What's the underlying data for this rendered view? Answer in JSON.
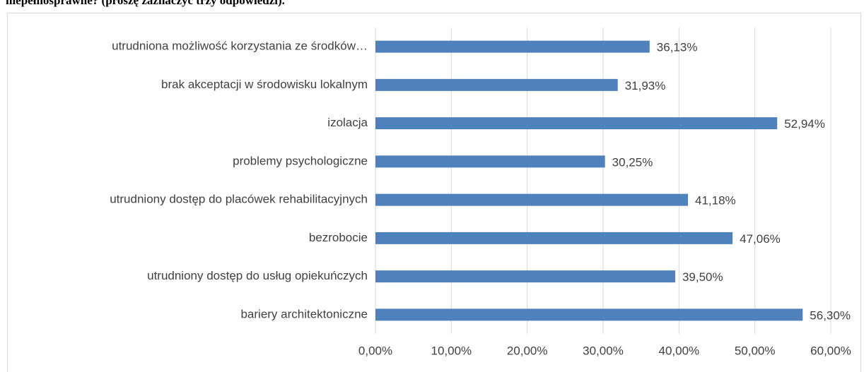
{
  "chart_data": {
    "type": "bar",
    "orientation": "horizontal",
    "title": "niepełnosprawne? (proszę zaznaczyć trzy odpowiedzi).",
    "categories": [
      "utrudniona możliwość korzystania ze środków…",
      "brak akceptacji w środowisku lokalnym",
      "izolacja",
      "problemy psychologiczne",
      "utrudniony dostęp do placówek rehabilitacyjnych",
      "bezrobocie",
      "utrudniony dostęp do usług opiekuńczych",
      "bariery architektoniczne"
    ],
    "values": [
      36.13,
      31.93,
      52.94,
      30.25,
      41.18,
      47.06,
      39.5,
      56.3
    ],
    "value_labels": [
      "36,13%",
      "31,93%",
      "52,94%",
      "30,25%",
      "41,18%",
      "47,06%",
      "39,50%",
      "56,30%"
    ],
    "color": "#4f81bd",
    "xlim": [
      0,
      60
    ],
    "xticks": [
      {
        "value": 0,
        "label": "0,00%"
      },
      {
        "value": 10,
        "label": "10,00%"
      },
      {
        "value": 20,
        "label": "20,00%"
      },
      {
        "value": 30,
        "label": "30,00%"
      },
      {
        "value": 40,
        "label": "40,00%"
      },
      {
        "value": 50,
        "label": "50,00%"
      },
      {
        "value": 60,
        "label": "60,00%"
      }
    ],
    "grid": true
  }
}
